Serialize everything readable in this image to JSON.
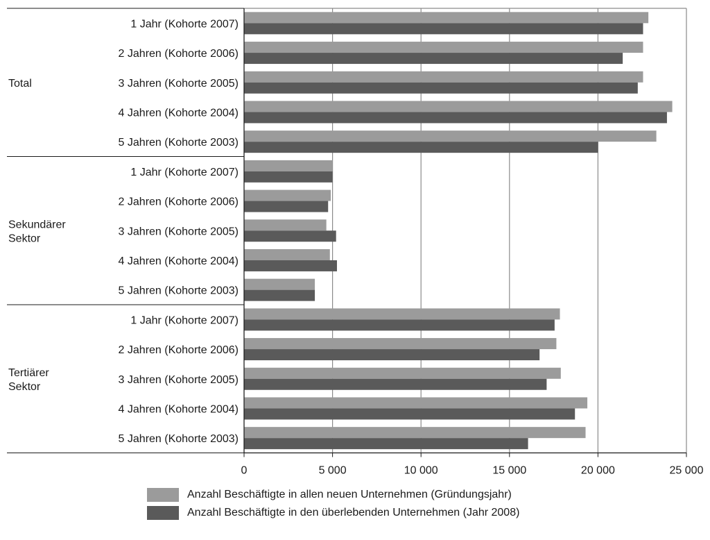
{
  "colors": {
    "series1": "#9b9b9b",
    "series2": "#5a5a5a",
    "grid": "#8a8a8a",
    "axis": "#1a1a1a"
  },
  "chart_data": {
    "type": "bar",
    "orientation": "horizontal",
    "xlim": [
      0,
      25000
    ],
    "x_ticks": [
      "0",
      "5 000",
      "10 000",
      "15 000",
      "20 000",
      "25 000"
    ],
    "grid": true,
    "legend_position": "bottom",
    "groups": [
      {
        "label": "Total",
        "categories": [
          "1 Jahr (Kohorte 2007)",
          "2 Jahren (Kohorte 2006)",
          "3 Jahren (Kohorte 2005)",
          "4 Jahren (Kohorte 2004)",
          "5 Jahren (Kohorte 2003)"
        ],
        "series1": [
          22850,
          22550,
          22550,
          24200,
          23300
        ],
        "series2": [
          22550,
          21400,
          22250,
          23900,
          20000
        ]
      },
      {
        "label": "Sekundärer Sektor",
        "categories": [
          "1 Jahr (Kohorte 2007)",
          "2 Jahren (Kohorte 2006)",
          "3 Jahren (Kohorte 2005)",
          "4 Jahren (Kohorte 2004)",
          "5 Jahren (Kohorte 2003)"
        ],
        "series1": [
          5000,
          4900,
          4650,
          4850,
          4000
        ],
        "series2": [
          5000,
          4750,
          5200,
          5250,
          4000
        ]
      },
      {
        "label": "Tertiärer Sektor",
        "categories": [
          "1 Jahr (Kohorte 2007)",
          "2 Jahren (Kohorte 2006)",
          "3 Jahren (Kohorte 2005)",
          "4 Jahren (Kohorte 2004)",
          "5 Jahren (Kohorte 2003)"
        ],
        "series1": [
          17850,
          17650,
          17900,
          19400,
          19300
        ],
        "series2": [
          17550,
          16700,
          17100,
          18700,
          16050
        ]
      }
    ],
    "series": [
      {
        "name": "Anzahl Beschäftigte in allen neuen Unternehmen (Gründungsjahr)"
      },
      {
        "name": "Anzahl Beschäftigte in den überlebenden Unternehmen (Jahr 2008)"
      }
    ]
  }
}
